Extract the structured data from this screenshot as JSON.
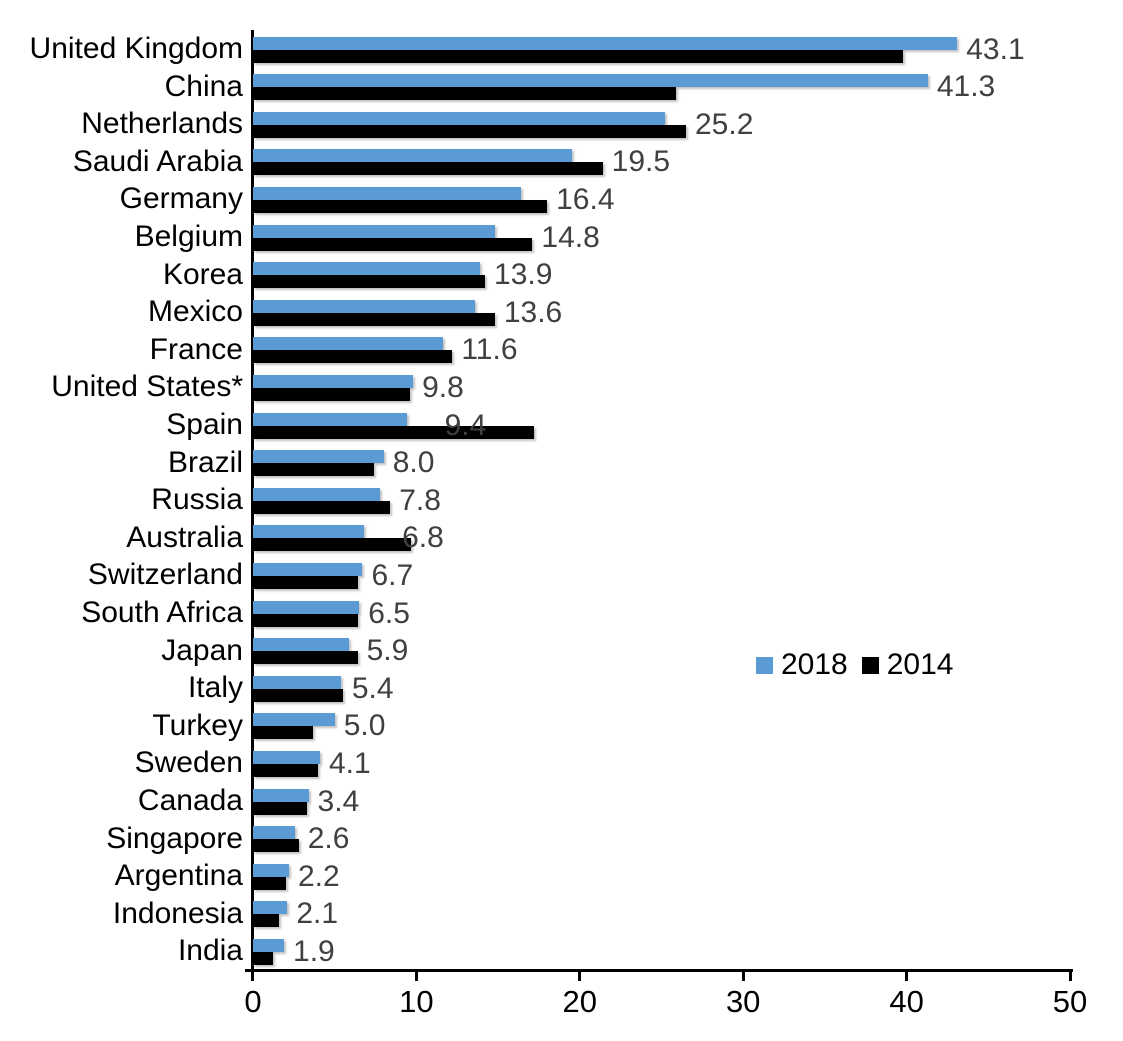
{
  "chart_data": {
    "type": "bar",
    "orientation": "horizontal",
    "title": "",
    "xlabel": "",
    "ylabel": "",
    "xlim": [
      0,
      50
    ],
    "x_ticks": [
      0,
      10,
      20,
      30,
      40,
      50
    ],
    "grid": false,
    "legend_position": "middle-right",
    "categories": [
      "United Kingdom",
      "China",
      "Netherlands",
      "Saudi Arabia",
      "Germany",
      "Belgium",
      "Korea",
      "Mexico",
      "France",
      "United States*",
      "Spain",
      "Brazil",
      "Russia",
      "Australia",
      "Switzerland",
      "South Africa",
      "Japan",
      "Italy",
      "Turkey",
      "Sweden",
      "Canada",
      "Singapore",
      "Argentina",
      "Indonesia",
      "India"
    ],
    "series": [
      {
        "name": "2018",
        "color": "#5B9BD5",
        "values": [
          43.1,
          41.3,
          25.2,
          19.5,
          16.4,
          14.8,
          13.9,
          13.6,
          11.6,
          9.8,
          9.4,
          8.0,
          7.8,
          6.8,
          6.7,
          6.5,
          5.9,
          5.4,
          5.0,
          4.1,
          3.4,
          2.6,
          2.2,
          2.1,
          1.9
        ]
      },
      {
        "name": "2014",
        "color": "#000000",
        "values": [
          39.8,
          25.9,
          26.5,
          21.4,
          18.0,
          17.1,
          14.2,
          14.8,
          12.2,
          9.6,
          17.2,
          7.4,
          8.4,
          9.7,
          6.4,
          6.4,
          6.4,
          5.5,
          3.7,
          4.0,
          3.3,
          2.8,
          2.0,
          1.6,
          1.2
        ]
      }
    ],
    "data_labels": {
      "series": "2018",
      "values": [
        "43.1",
        "41.3",
        "25.2",
        "19.5",
        "16.4",
        "14.8",
        "13.9",
        "13.6",
        "11.6",
        "9.8",
        "9.4",
        "8.0",
        "7.8",
        "6.8",
        "6.7",
        "6.5",
        "5.9",
        "5.4",
        "5.0",
        "4.1",
        "3.4",
        "2.6",
        "2.2",
        "2.1",
        "1.9"
      ]
    },
    "legend": [
      {
        "label": "2018",
        "color": "#5B9BD5"
      },
      {
        "label": "2014",
        "color": "#000000"
      }
    ]
  },
  "colors": {
    "background": "#ffffff",
    "axis": "#000000",
    "category_label": "#000000",
    "data_label": "#404040",
    "series_2018": "#5B9BD5",
    "series_2014": "#000000"
  }
}
